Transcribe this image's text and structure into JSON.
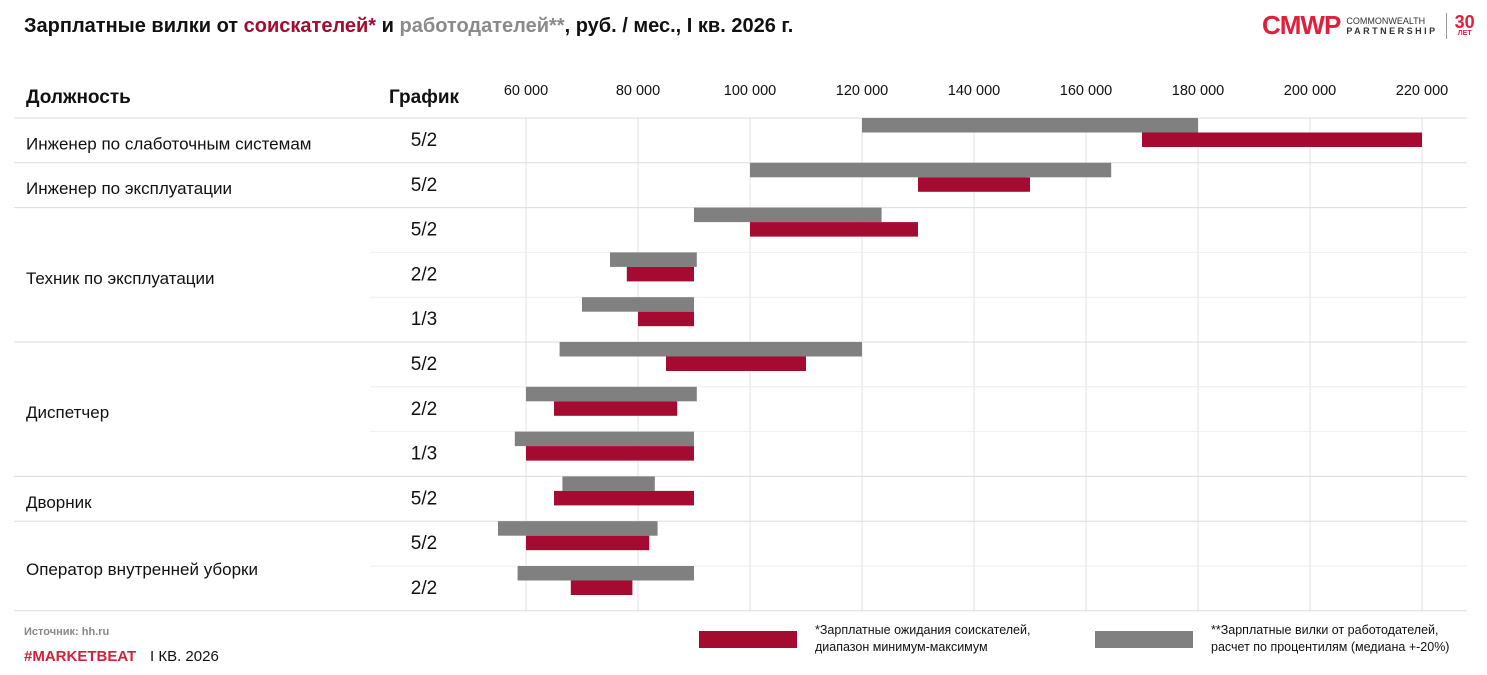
{
  "header": {
    "title_parts": [
      "Зарплатные вилки от ",
      "соискателей*",
      " и ",
      "работодателей**",
      ", руб. / мес., I кв. 2026 г."
    ],
    "logo": {
      "mark": "CMWP",
      "line1": "COMMONWEALTH",
      "line2": "PARTNERSHIP",
      "badge": "30",
      "badge_sub": "ЛЕТ"
    }
  },
  "colors": {
    "seekers": "#A50A30",
    "employers": "#808080"
  },
  "chart_data": {
    "type": "bar",
    "orientation": "horizontal-range",
    "column_headers": {
      "position": "Должность",
      "schedule": "График"
    },
    "xlim": [
      60000,
      220000
    ],
    "x_ticks": [
      60000,
      80000,
      100000,
      120000,
      140000,
      160000,
      180000,
      200000,
      220000
    ],
    "x_tick_labels": [
      "60 000",
      "80 000",
      "100 000",
      "120 000",
      "140 000",
      "160 000",
      "180 000",
      "200 000",
      "220 000"
    ],
    "grid": true,
    "groups": [
      {
        "position": "Инженер по слаботочным системам",
        "rows": [
          0
        ]
      },
      {
        "position": "Инженер по эксплуатации",
        "rows": [
          1
        ]
      },
      {
        "position": "Техник по эксплуатации",
        "rows": [
          2,
          3,
          4
        ]
      },
      {
        "position": "Диспетчер",
        "rows": [
          5,
          6,
          7
        ]
      },
      {
        "position": "Дворник",
        "rows": [
          8
        ]
      },
      {
        "position": "Оператор внутренней уборки",
        "rows": [
          9,
          10
        ]
      }
    ],
    "rows": [
      {
        "schedule": "5/2",
        "employers": [
          120000,
          180000
        ],
        "seekers": [
          170000,
          220000
        ]
      },
      {
        "schedule": "5/2",
        "employers": [
          100000,
          164500
        ],
        "seekers": [
          130000,
          150000
        ]
      },
      {
        "schedule": "5/2",
        "employers": [
          90000,
          123500
        ],
        "seekers": [
          100000,
          130000
        ]
      },
      {
        "schedule": "2/2",
        "employers": [
          75000,
          90500
        ],
        "seekers": [
          78000,
          90000
        ]
      },
      {
        "schedule": "1/3",
        "employers": [
          70000,
          90000
        ],
        "seekers": [
          80000,
          90000
        ]
      },
      {
        "schedule": "5/2",
        "employers": [
          66000,
          120000
        ],
        "seekers": [
          85000,
          110000
        ]
      },
      {
        "schedule": "2/2",
        "employers": [
          60000,
          90500
        ],
        "seekers": [
          65000,
          87000
        ]
      },
      {
        "schedule": "1/3",
        "employers": [
          58000,
          90000
        ],
        "seekers": [
          60000,
          90000
        ]
      },
      {
        "schedule": "5/2",
        "employers": [
          66500,
          83000
        ],
        "seekers": [
          65000,
          90000
        ]
      },
      {
        "schedule": "5/2",
        "employers": [
          55000,
          83500
        ],
        "seekers": [
          60000,
          82000
        ]
      },
      {
        "schedule": "2/2",
        "employers": [
          58500,
          90000
        ],
        "seekers": [
          68000,
          79000
        ]
      }
    ],
    "legend": [
      {
        "series": "seekers",
        "text1": "*Зарплатные ожидания соискателей,",
        "text2": "диапазон минимум-максимум"
      },
      {
        "series": "employers",
        "text1": "**Зарплатные вилки от работодателей,",
        "text2": "расчет по процентилям (медиана +-20%)"
      }
    ]
  },
  "footer": {
    "source": "Источник: hh.ru",
    "brand": "#MARKETBEAT",
    "period": "I КВ. 2026"
  }
}
